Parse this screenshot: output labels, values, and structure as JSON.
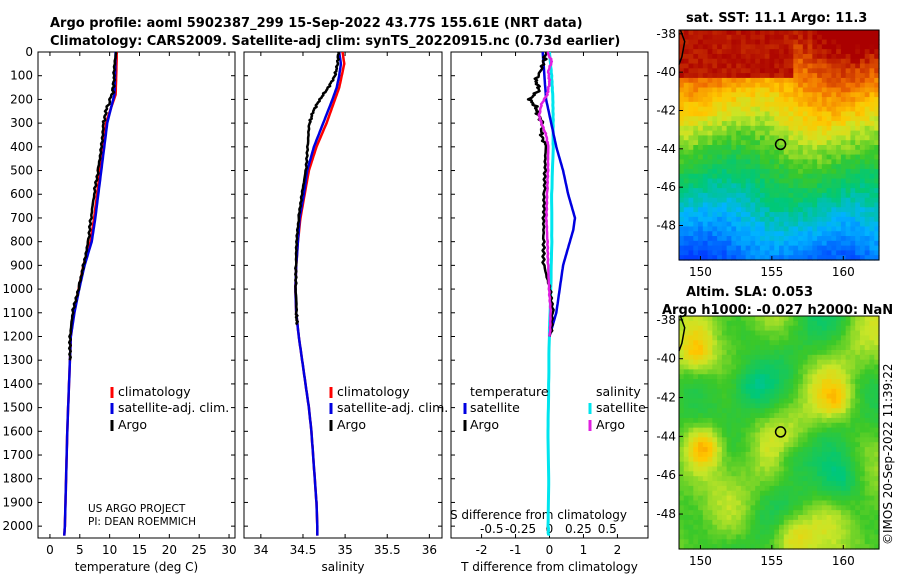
{
  "header": {
    "title_line1": "Argo profile: aoml 5902387_299 15-Sep-2022 43.77S 155.61E (NRT data)",
    "title_line2": "Climatology: CARS2009. Satellite-adj clim: synTS_20220915.nc (0.73d earlier)"
  },
  "credits": {
    "project": "US ARGO PROJECT",
    "pi": "PI: DEAN ROEMMICH",
    "imos_stamp": "©IMOS 20-Sep-2022 11:39:22"
  },
  "colors": {
    "climatology": "#ff0000",
    "satellite": "#0000e0",
    "argo": "#000000",
    "sat_salinity": "#00e5ee",
    "argo_salinity": "#e020e0"
  },
  "chart_data": [
    {
      "type": "line",
      "title": "",
      "xlabel": "temperature (deg C)",
      "ylabel": "",
      "xlim": [
        -2,
        31
      ],
      "ylim": [
        2050,
        0
      ],
      "xticks": [
        0,
        5,
        10,
        15,
        20,
        25,
        30
      ],
      "yticks": [
        0,
        100,
        200,
        300,
        400,
        500,
        600,
        700,
        800,
        900,
        1000,
        1100,
        1200,
        1300,
        1400,
        1500,
        1600,
        1700,
        1800,
        1900,
        2000
      ],
      "legend": [
        "climatology",
        "satellite-adj. clim.",
        "Argo"
      ],
      "series": [
        {
          "name": "climatology",
          "depth": [
            0,
            100,
            180,
            260,
            300,
            400,
            500,
            600,
            700,
            800,
            900,
            1000,
            1100,
            1200,
            1400,
            1600,
            1800,
            2000,
            2040
          ],
          "values": [
            11.2,
            11.1,
            11.0,
            9.9,
            9.4,
            8.9,
            8.4,
            7.9,
            7.4,
            6.8,
            5.6,
            4.8,
            4.0,
            3.5,
            3.2,
            2.9,
            2.7,
            2.5,
            2.4
          ]
        },
        {
          "name": "satellite-adj. clim.",
          "depth": [
            0,
            100,
            180,
            260,
            300,
            400,
            500,
            600,
            700,
            800,
            900,
            1000,
            1100,
            1200,
            1400,
            1600,
            1800,
            2000,
            2040
          ],
          "values": [
            11.0,
            10.9,
            10.8,
            10.0,
            9.6,
            9.1,
            8.6,
            8.1,
            7.6,
            7.0,
            5.8,
            4.9,
            4.1,
            3.5,
            3.2,
            2.9,
            2.7,
            2.5,
            2.4
          ]
        },
        {
          "name": "Argo",
          "depth": [
            0,
            100,
            170,
            250,
            300,
            400,
            500,
            600,
            700,
            800,
            900,
            1000,
            1100,
            1200,
            1300
          ],
          "values": [
            11.1,
            10.8,
            10.5,
            9.4,
            9.0,
            8.5,
            8.0,
            7.5,
            7.0,
            6.4,
            5.5,
            4.7,
            3.9,
            3.5,
            3.3
          ]
        }
      ]
    },
    {
      "type": "line",
      "title": "",
      "xlabel": "salinity",
      "ylabel": "",
      "xlim": [
        33.8,
        36.15
      ],
      "ylim": [
        2050,
        0
      ],
      "xticks": [
        34,
        34.5,
        35,
        35.5,
        36
      ],
      "legend": [
        "climatology",
        "satellite-adj. clim.",
        "Argo"
      ],
      "series": [
        {
          "name": "climatology",
          "depth": [
            0,
            50,
            100,
            150,
            200,
            300,
            400,
            500,
            600,
            700,
            800,
            900,
            1000,
            1100,
            1200,
            1300,
            1400,
            1500,
            1600,
            1700,
            1800,
            1900,
            2000,
            2040
          ],
          "values": [
            34.97,
            34.99,
            34.96,
            34.93,
            34.88,
            34.78,
            34.66,
            34.57,
            34.52,
            34.47,
            34.44,
            34.42,
            34.41,
            34.42,
            34.45,
            34.49,
            34.53,
            34.57,
            34.6,
            34.62,
            34.64,
            34.66,
            34.67,
            34.67
          ]
        },
        {
          "name": "satellite-adj. clim.",
          "depth": [
            0,
            50,
            100,
            150,
            200,
            300,
            400,
            500,
            600,
            700,
            800,
            900,
            1000,
            1100,
            1200,
            1300,
            1400,
            1500,
            1600,
            1700,
            1800,
            1900,
            2000,
            2040
          ],
          "values": [
            34.93,
            34.95,
            34.93,
            34.9,
            34.85,
            34.74,
            34.63,
            34.55,
            34.51,
            34.46,
            34.44,
            34.42,
            34.41,
            34.42,
            34.45,
            34.49,
            34.53,
            34.57,
            34.6,
            34.62,
            34.64,
            34.66,
            34.67,
            34.67
          ]
        },
        {
          "name": "Argo",
          "depth": [
            0,
            50,
            100,
            150,
            200,
            250,
            300,
            400,
            500,
            600,
            700,
            800,
            900,
            1000,
            1100,
            1150
          ],
          "values": [
            34.92,
            34.91,
            34.88,
            34.8,
            34.7,
            34.62,
            34.58,
            34.56,
            34.53,
            34.48,
            34.45,
            34.43,
            34.42,
            34.41,
            34.42,
            34.43
          ]
        }
      ]
    },
    {
      "type": "line",
      "title": "",
      "xlabel": "T difference from climatology",
      "xlabel_top": "S difference from climatology",
      "ylabel": "",
      "xlim": [
        -2.9,
        2.9
      ],
      "ylim": [
        2050,
        0
      ],
      "xticks": [
        -2,
        -1,
        0,
        1,
        2
      ],
      "xticks_top": [
        -0.5,
        -0.25,
        0,
        0.25,
        0.5
      ],
      "legend_temperature_title": "temperature",
      "legend_salinity_title": "salinity",
      "legend": [
        "satellite",
        "Argo",
        "satellite",
        "Argo"
      ],
      "series": [
        {
          "name": "temperature satellite",
          "depth": [
            0,
            100,
            200,
            300,
            400,
            500,
            600,
            700,
            750,
            800,
            900,
            1000,
            1100,
            1200
          ],
          "values": [
            -0.2,
            -0.15,
            -0.1,
            0.05,
            0.2,
            0.4,
            0.55,
            0.75,
            0.7,
            0.6,
            0.4,
            0.3,
            0.2,
            0.0
          ]
        },
        {
          "name": "temperature Argo",
          "depth": [
            0,
            60,
            120,
            160,
            200,
            230,
            260,
            300,
            350,
            400,
            500,
            600,
            700,
            800,
            900,
            1000,
            1100,
            1200
          ],
          "values": [
            -0.1,
            -0.2,
            -0.4,
            -0.3,
            -0.6,
            -0.4,
            -0.35,
            -0.2,
            -0.25,
            -0.1,
            -0.1,
            -0.15,
            -0.2,
            -0.2,
            -0.15,
            0.05,
            0.1,
            0.0
          ]
        },
        {
          "name": "salinity satellite",
          "depth": [
            0,
            100,
            200,
            300,
            400,
            600,
            800,
            1000,
            1200,
            1400,
            1600,
            1800,
            2000,
            2040
          ],
          "values": [
            0.0,
            0.02,
            0.03,
            0.03,
            0.03,
            0.02,
            0.02,
            0.01,
            0.0,
            -0.01,
            -0.01,
            -0.01,
            -0.01,
            -0.01
          ]
        },
        {
          "name": "salinity Argo",
          "depth": [
            0,
            40,
            80,
            130,
            180,
            220,
            270,
            300,
            350,
            400,
            500,
            600,
            700,
            800,
            900,
            1000,
            1100,
            1200
          ],
          "values": [
            -0.02,
            0.02,
            -0.01,
            0.0,
            -0.02,
            -0.07,
            -0.09,
            -0.07,
            -0.03,
            -0.01,
            -0.01,
            -0.02,
            -0.03,
            -0.02,
            -0.01,
            0.0,
            0.01,
            0.0
          ]
        }
      ]
    },
    {
      "type": "heatmap",
      "title": "sat. SST: 11.1 Argo: 11.3",
      "xlim": [
        148.5,
        162.5
      ],
      "ylim": [
        -49.8,
        -37.8
      ],
      "xticks": [
        150,
        155,
        160
      ],
      "yticks": [
        -38,
        -40,
        -42,
        -44,
        -46,
        -48
      ],
      "marker": {
        "lon": 155.61,
        "lat": -43.77
      }
    },
    {
      "type": "heatmap",
      "title": "Altim. SLA: 0.053",
      "subtitle": "Argo h1000: -0.027 h2000: NaN",
      "xlim": [
        148.5,
        162.5
      ],
      "ylim": [
        -49.8,
        -37.8
      ],
      "xticks": [
        150,
        155,
        160
      ],
      "yticks": [
        -38,
        -40,
        -42,
        -44,
        -46,
        -48
      ],
      "marker": {
        "lon": 155.61,
        "lat": -43.77
      }
    }
  ]
}
